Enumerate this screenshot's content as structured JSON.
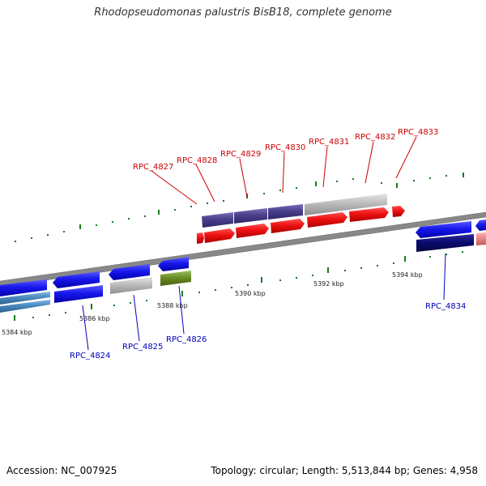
{
  "title": "Rhodopseudomonas palustris BisB18, complete genome",
  "footer": {
    "accession": "Accession: NC_007925",
    "summary": "Topology: circular; Length: 5,513,844 bp; Genes: 4,958"
  },
  "colors": {
    "forward_cds": "#ee1111",
    "reverse_cds": "#1818ee",
    "purple_gene": "#4a3f8c",
    "gray_gene": "#bbbbbb",
    "olive_gene": "#6b8e23",
    "navy_gene": "#0b0b70",
    "steel_gene": "#4a8abf",
    "pink_gene": "#e88888",
    "forward_label": "#cc0000",
    "reverse_label": "#0000bb",
    "backbone": "#888888",
    "tick": "#1a7a1a"
  },
  "scale_labels": [
    "5384 kbp",
    "5386 kbp",
    "5388 kbp",
    "5390 kbp",
    "5392 kbp",
    "5394 kbp"
  ],
  "forward_labels": [
    "RPC_4827",
    "RPC_4828",
    "RPC_4829",
    "RPC_4830",
    "RPC_4831",
    "RPC_4832",
    "RPC_4833"
  ],
  "reverse_labels": [
    "RPC_4824",
    "RPC_4825",
    "RPC_4826",
    "RPC_4834"
  ]
}
